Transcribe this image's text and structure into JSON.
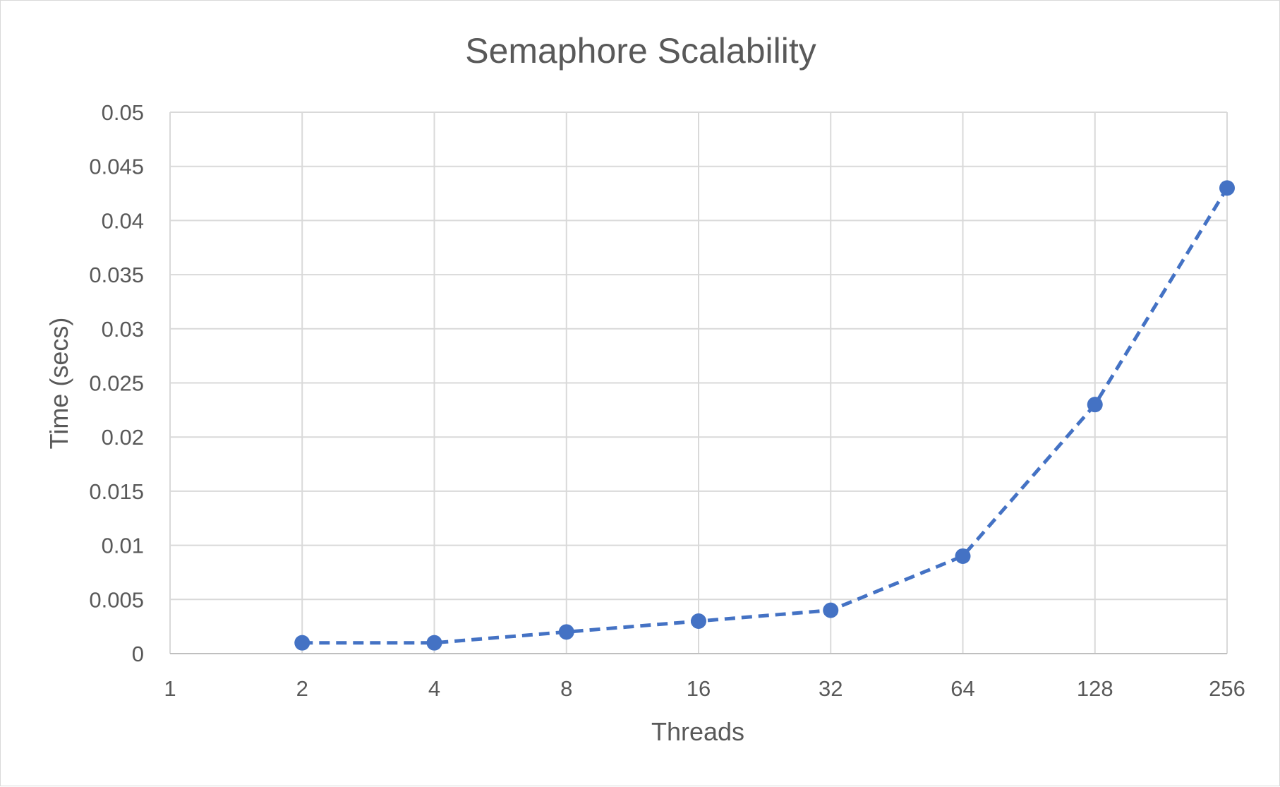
{
  "chart_data": {
    "type": "line",
    "title": "Semaphore Scalability",
    "xlabel": "Threads",
    "ylabel": "Time (secs)",
    "x_scale": "log2",
    "x_ticks": [
      "1",
      "2",
      "4",
      "8",
      "16",
      "32",
      "64",
      "128",
      "256"
    ],
    "y_ticks": [
      "0",
      "0.005",
      "0.01",
      "0.015",
      "0.02",
      "0.025",
      "0.03",
      "0.035",
      "0.04",
      "0.045",
      "0.05"
    ],
    "ylim": [
      0,
      0.05
    ],
    "grid": true,
    "series": [
      {
        "x": [
          2,
          4,
          8,
          16,
          32,
          64,
          128,
          256
        ],
        "y": [
          0.001,
          0.001,
          0.002,
          0.003,
          0.004,
          0.009,
          0.023,
          0.043
        ],
        "line_style": "dashed",
        "marker": "circle",
        "color": "#4472c4"
      }
    ]
  }
}
